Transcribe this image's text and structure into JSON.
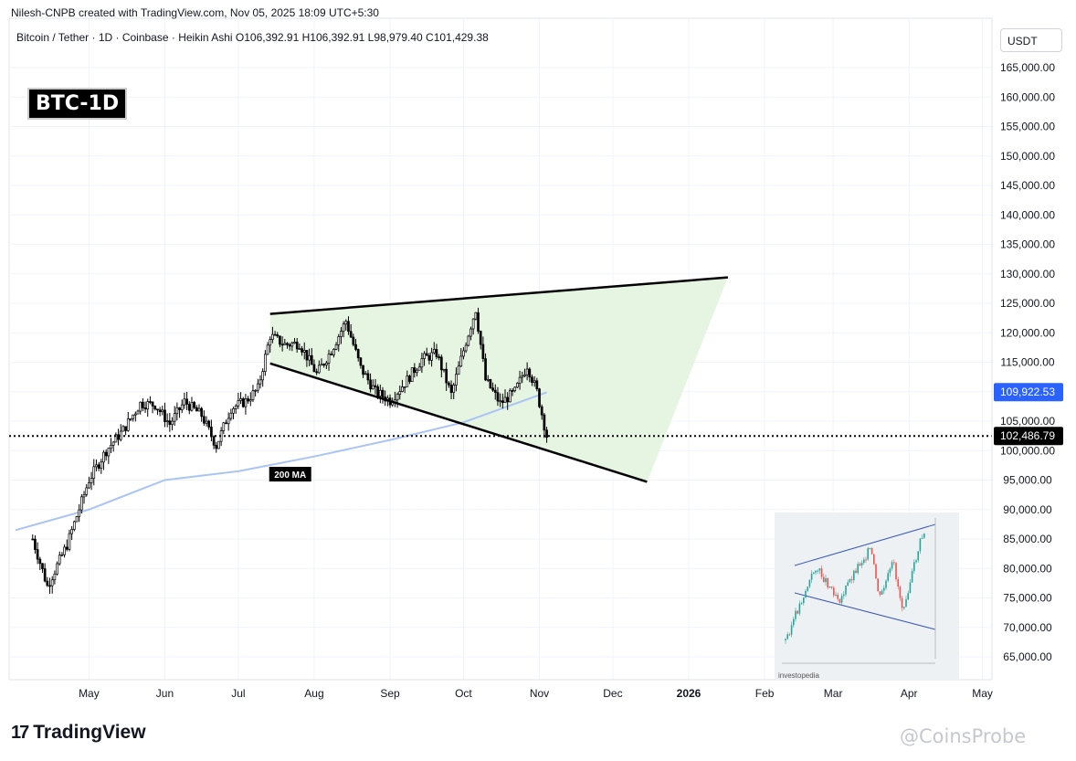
{
  "header": {
    "creator": "Nilesh-CNPB created with TradingView.com, Nov 05, 2025 18:09 UTC+5:30",
    "legend": "Bitcoin / Tether · 1D · Coinbase · Heikin Ashi  O106,392.91  H106,392.91  L98,979.40  C101,429.38",
    "currency": "USDT"
  },
  "tag": "BTC-1D",
  "footer": {
    "logo_text": "TradingView",
    "logo_mark": "17",
    "watermark": "@CoinsProbe"
  },
  "inset": {
    "caption": "investopedia"
  },
  "colors": {
    "triangle_fill": "#e3f3df",
    "ma_line": "#a9c4f5",
    "ma_label_bg": "#000000",
    "price_tag_blue": "#2962ff",
    "price_tag_black": "#000000"
  },
  "chart_data": {
    "type": "candlestick",
    "ylim": [
      62500,
      169000
    ],
    "y_ticks": [
      "165,000.00",
      "160,000.00",
      "155,000.00",
      "150,000.00",
      "145,000.00",
      "140,000.00",
      "135,000.00",
      "130,000.00",
      "125,000.00",
      "120,000.00",
      "115,000.00",
      "110,000.00",
      "105,000.00",
      "100,000.00",
      "95,000.00",
      "90,000.00",
      "85,000.00",
      "80,000.00",
      "75,000.00",
      "70,000.00",
      "65,000.00"
    ],
    "x_ticks": [
      "May",
      "Jun",
      "Jul",
      "Aug",
      "Sep",
      "Oct",
      "Nov",
      "Dec",
      "2026",
      "Feb",
      "Mar",
      "Apr",
      "May"
    ],
    "price_labels": {
      "ma": "109,922.53",
      "last": "102,486.79"
    },
    "ma_label": "200 MA",
    "pattern": {
      "upper_line": [
        [
          "2025-07-14",
          123200
        ],
        [
          "2026-01-17",
          129400
        ]
      ],
      "lower_line": [
        [
          "2025-07-14",
          114800
        ],
        [
          "2025-12-15",
          94700
        ]
      ]
    },
    "price_path": [
      [
        "2025-04-08",
        85000
      ],
      [
        "2025-04-14",
        77000
      ],
      [
        "2025-04-22",
        84000
      ],
      [
        "2025-05-01",
        95000
      ],
      [
        "2025-05-08",
        100000
      ],
      [
        "2025-05-15",
        103500
      ],
      [
        "2025-05-22",
        108000
      ],
      [
        "2025-05-28",
        107800
      ],
      [
        "2025-06-03",
        104500
      ],
      [
        "2025-06-09",
        108300
      ],
      [
        "2025-06-16",
        106000
      ],
      [
        "2025-06-22",
        100800
      ],
      [
        "2025-06-28",
        107200
      ],
      [
        "2025-07-04",
        108400
      ],
      [
        "2025-07-09",
        110500
      ],
      [
        "2025-07-14",
        119500
      ],
      [
        "2025-07-20",
        118000
      ],
      [
        "2025-07-26",
        118200
      ],
      [
        "2025-08-02",
        113000
      ],
      [
        "2025-08-08",
        117000
      ],
      [
        "2025-08-14",
        122000
      ],
      [
        "2025-08-20",
        114000
      ],
      [
        "2025-08-26",
        110000
      ],
      [
        "2025-09-01",
        108500
      ],
      [
        "2025-09-08",
        112000
      ],
      [
        "2025-09-14",
        115500
      ],
      [
        "2025-09-20",
        116500
      ],
      [
        "2025-09-26",
        109500
      ],
      [
        "2025-10-02",
        118500
      ],
      [
        "2025-10-06",
        124000
      ],
      [
        "2025-10-10",
        112000
      ],
      [
        "2025-10-16",
        108000
      ],
      [
        "2025-10-22",
        110000
      ],
      [
        "2025-10-27",
        114500
      ],
      [
        "2025-10-31",
        110000
      ],
      [
        "2025-11-04",
        102500
      ]
    ],
    "ma_path": [
      [
        "2025-04-01",
        86500
      ],
      [
        "2025-05-01",
        90000
      ],
      [
        "2025-06-01",
        95000
      ],
      [
        "2025-07-01",
        96500
      ],
      [
        "2025-08-01",
        99000
      ],
      [
        "2025-09-01",
        101800
      ],
      [
        "2025-10-01",
        104800
      ],
      [
        "2025-11-04",
        109900
      ]
    ]
  }
}
